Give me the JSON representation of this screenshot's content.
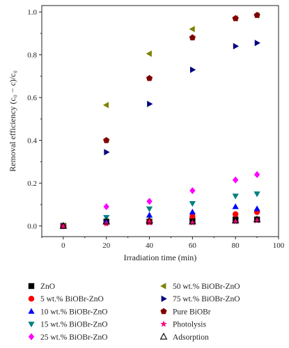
{
  "chart_data": {
    "type": "scatter",
    "title": "",
    "xlabel": "Irradiation time (min)",
    "ylabel": "Removal efficiency (c₀ − c)/c₀",
    "xlim": [
      -10,
      100
    ],
    "ylim": [
      -0.05,
      1.03
    ],
    "xticks": [
      "0",
      "20",
      "40",
      "60",
      "80",
      "100"
    ],
    "yticks": [
      "0.0",
      "0.2",
      "0.4",
      "0.6",
      "0.8",
      "1.0"
    ],
    "grid": false,
    "legend_position": "below-plot",
    "x": [
      0,
      20,
      40,
      60,
      80,
      90
    ],
    "series": [
      {
        "name": "ZnO",
        "marker": "square",
        "color": "#000000",
        "values": [
          0,
          0.02,
          0.02,
          0.025,
          0.03,
          0.03
        ]
      },
      {
        "name": "5 wt.% BiOBr-ZnO",
        "marker": "circle",
        "color": "#ff0000",
        "values": [
          0,
          0.015,
          0.02,
          0.045,
          0.055,
          0.065
        ]
      },
      {
        "name": "10 wt.% BiOBr-ZnO",
        "marker": "triangle-up",
        "color": "#0000ff",
        "values": [
          0,
          0.025,
          0.05,
          0.065,
          0.09,
          0.08
        ]
      },
      {
        "name": "15 wt.% BiOBr-ZnO",
        "marker": "triangle-down",
        "color": "#008080",
        "values": [
          0,
          0.04,
          0.08,
          0.105,
          0.14,
          0.15
        ]
      },
      {
        "name": "25 wt.% BiOBr-ZnO",
        "marker": "diamond",
        "color": "#ff00ff",
        "values": [
          0,
          0.09,
          0.115,
          0.165,
          0.215,
          0.24
        ]
      },
      {
        "name": "50 wt.% BiOBr-ZnO",
        "marker": "triangle-left",
        "color": "#808000",
        "values": [
          0,
          0.565,
          0.805,
          0.92,
          0.97,
          0.985
        ]
      },
      {
        "name": "75 wt.% BiOBr-ZnO",
        "marker": "triangle-right",
        "color": "#000080",
        "values": [
          0,
          0.345,
          0.57,
          0.73,
          0.84,
          0.855
        ]
      },
      {
        "name": "Pure BiOBr",
        "marker": "pentagon",
        "color": "#800000",
        "values": [
          0,
          0.4,
          0.69,
          0.88,
          0.97,
          0.985
        ]
      },
      {
        "name": "Photolysis",
        "marker": "star",
        "color": "#ff0080",
        "values": [
          0,
          0.01,
          0.015,
          0.015,
          0.02,
          0.025
        ]
      },
      {
        "name": "Adsorption",
        "marker": "open-triangle",
        "color": "#000000",
        "values": [
          0,
          0.02,
          0.025,
          0.02,
          0.025,
          0.03
        ]
      }
    ]
  }
}
